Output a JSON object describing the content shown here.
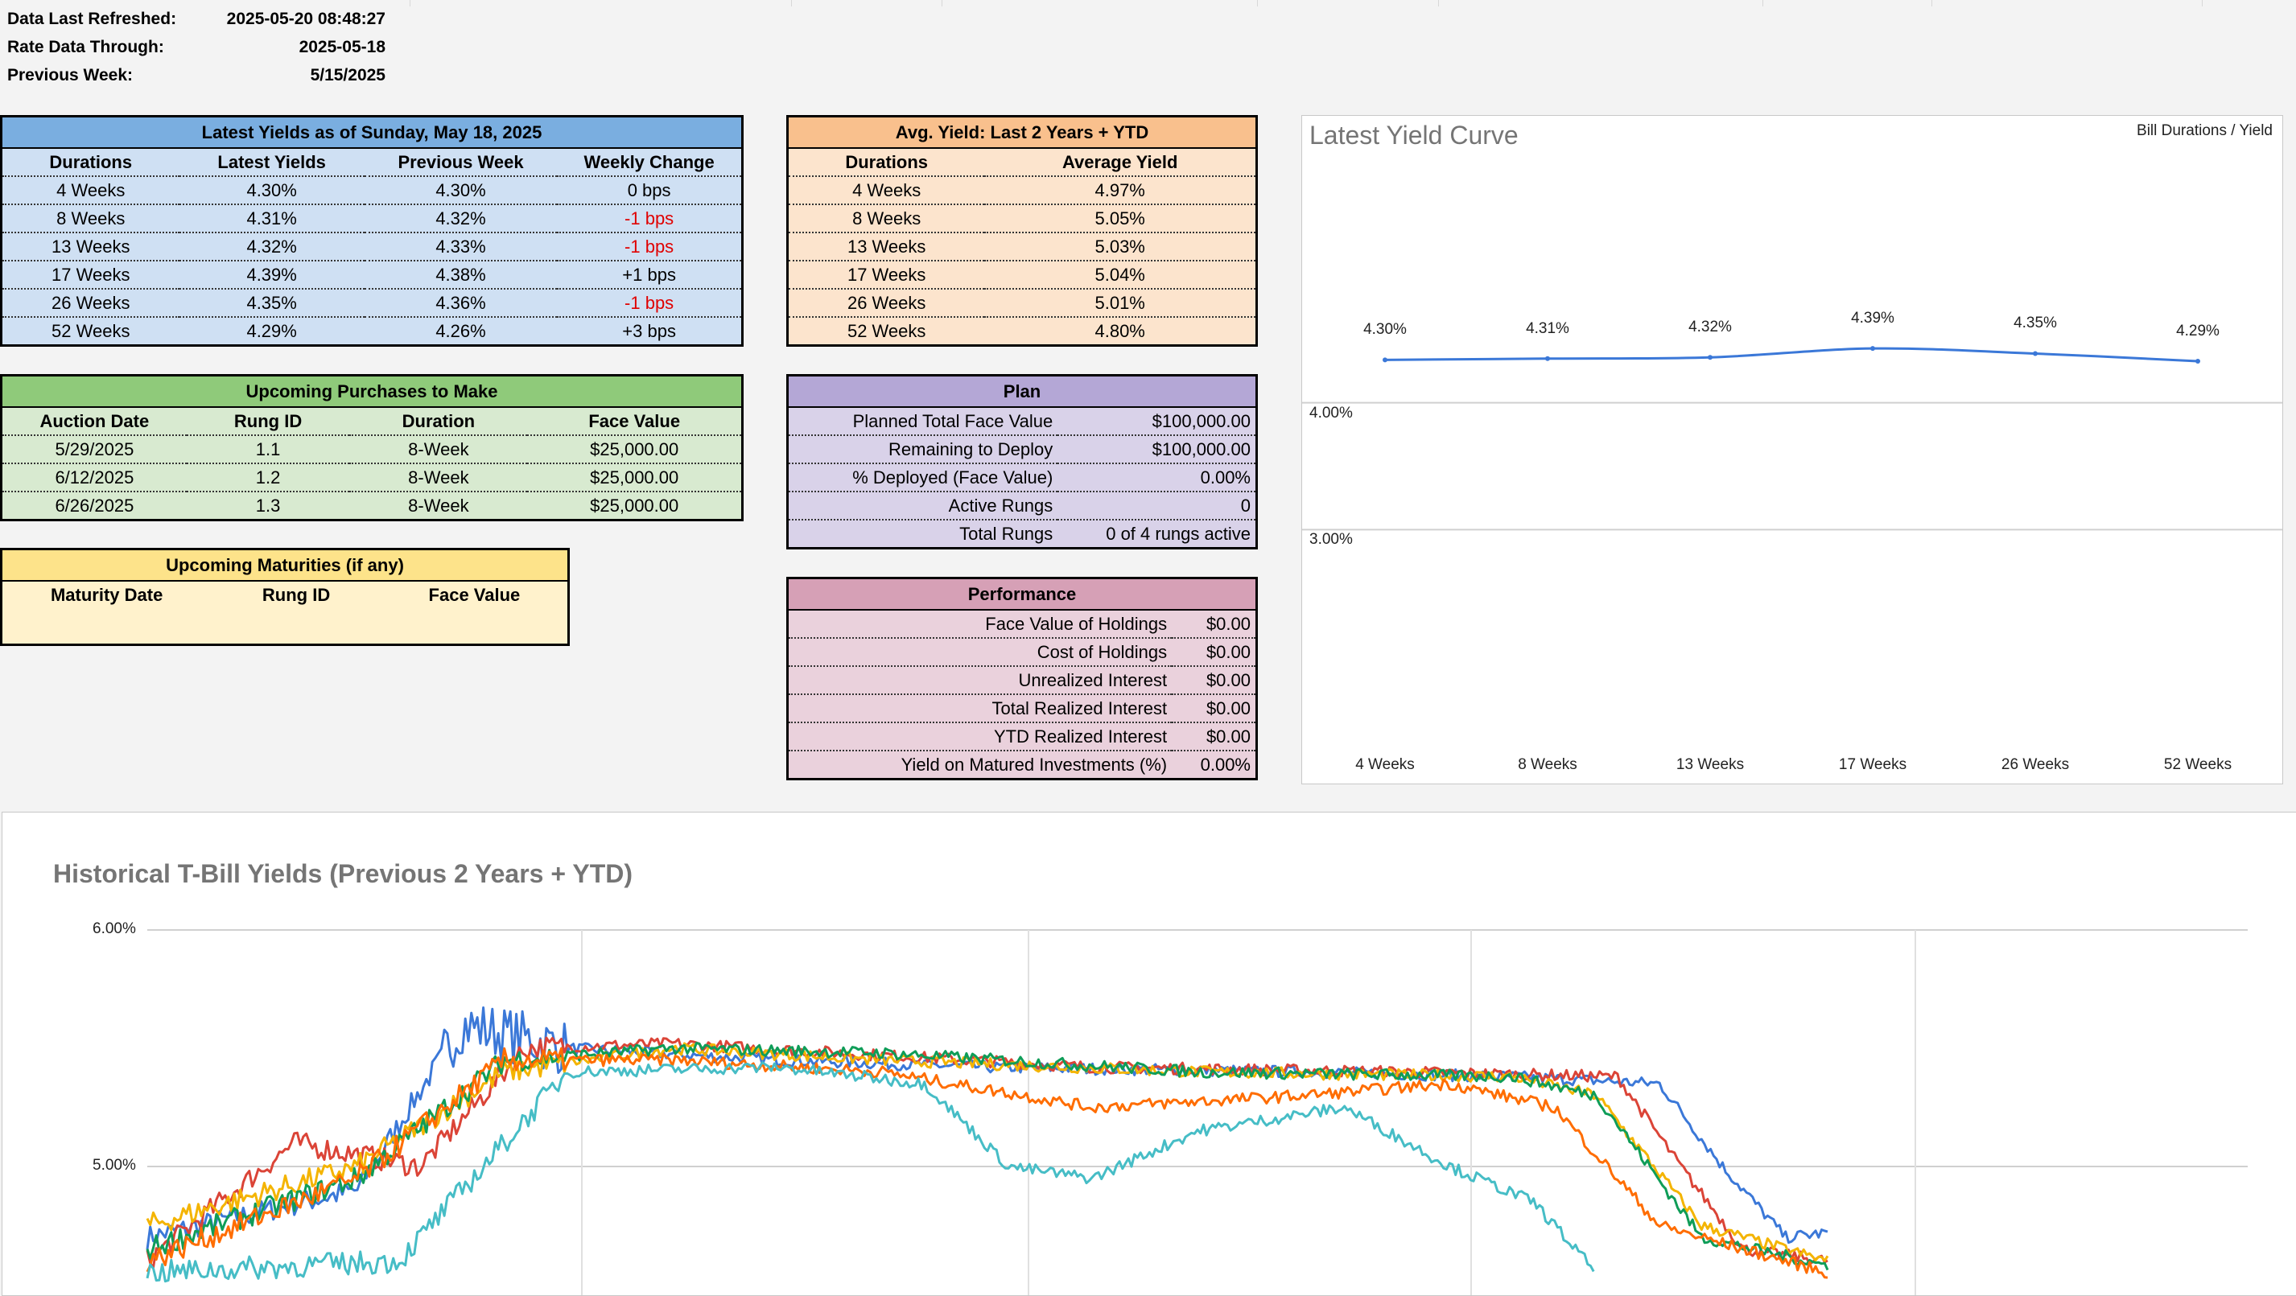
{
  "meta": {
    "refreshed_label": "Data Last Refreshed:",
    "refreshed_value": "2025-05-20 08:48:27",
    "through_label": "Rate Data Through:",
    "through_value": "2025-05-18",
    "prev_label": "Previous Week:",
    "prev_value": "5/15/2025"
  },
  "latest": {
    "title": "Latest Yields as of Sunday, May 18, 2025",
    "headers": [
      "Durations",
      "Latest Yields",
      "Previous Week",
      "Weekly Change"
    ],
    "rows": [
      [
        "4 Weeks",
        "4.30%",
        "4.30%",
        "0 bps"
      ],
      [
        "8 Weeks",
        "4.31%",
        "4.32%",
        "-1 bps"
      ],
      [
        "13 Weeks",
        "4.32%",
        "4.33%",
        "-1 bps"
      ],
      [
        "17 Weeks",
        "4.39%",
        "4.38%",
        "+1 bps"
      ],
      [
        "26 Weeks",
        "4.35%",
        "4.36%",
        "-1 bps"
      ],
      [
        "52 Weeks",
        "4.29%",
        "4.26%",
        "+3 bps"
      ]
    ],
    "negative_color": "#e00000"
  },
  "avg": {
    "title": "Avg. Yield: Last 2 Years + YTD",
    "headers": [
      "Durations",
      "Average Yield"
    ],
    "rows": [
      [
        "4 Weeks",
        "4.97%"
      ],
      [
        "8 Weeks",
        "5.05%"
      ],
      [
        "13 Weeks",
        "5.03%"
      ],
      [
        "17 Weeks",
        "5.04%"
      ],
      [
        "26 Weeks",
        "5.01%"
      ],
      [
        "52 Weeks",
        "4.80%"
      ]
    ]
  },
  "purchases": {
    "title": "Upcoming Purchases to Make",
    "headers": [
      "Auction Date",
      "Rung ID",
      "Duration",
      "Face Value"
    ],
    "rows": [
      [
        "5/29/2025",
        "1.1",
        "8-Week",
        "$25,000.00"
      ],
      [
        "6/12/2025",
        "1.2",
        "8-Week",
        "$25,000.00"
      ],
      [
        "6/26/2025",
        "1.3",
        "8-Week",
        "$25,000.00"
      ]
    ]
  },
  "maturities": {
    "title": "Upcoming Maturities (if any)",
    "headers": [
      "Maturity Date",
      "Rung ID",
      "Face Value"
    ]
  },
  "plan": {
    "title": "Plan",
    "rows": [
      [
        "Planned Total Face Value",
        "$100,000.00"
      ],
      [
        "Remaining to Deploy",
        "$100,000.00"
      ],
      [
        "% Deployed (Face Value)",
        "0.00%"
      ],
      [
        "Active Rungs",
        "0"
      ],
      [
        "Total Rungs",
        "0 of 4 rungs active"
      ]
    ]
  },
  "performance": {
    "title": "Performance",
    "rows": [
      [
        "Face Value of Holdings",
        "$0.00"
      ],
      [
        "Cost of Holdings",
        "$0.00"
      ],
      [
        "Unrealized Interest",
        "$0.00"
      ],
      [
        "Total Realized Interest",
        "$0.00"
      ],
      [
        "YTD Realized Interest",
        "$0.00"
      ],
      [
        "Yield on Matured Investments (%)",
        "0.00%"
      ]
    ]
  },
  "chart_data": [
    {
      "type": "line",
      "title": "Latest Yield Curve",
      "legend": "Bill Durations / Yield",
      "categories": [
        "4 Weeks",
        "8 Weeks",
        "13 Weeks",
        "17 Weeks",
        "26 Weeks",
        "52 Weeks"
      ],
      "values": [
        4.3,
        4.31,
        4.32,
        4.39,
        4.35,
        4.29
      ],
      "point_labels": [
        "4.30%",
        "4.31%",
        "4.32%",
        "4.39%",
        "4.35%",
        "4.29%"
      ],
      "ytick_labels": [
        "4.00%",
        "3.00%"
      ],
      "ylim": [
        2.0,
        5.0
      ],
      "color": "#3b78d8"
    },
    {
      "type": "line",
      "title": "Historical T-Bill Yields (Previous 2 Years + YTD)",
      "ytick_labels": [
        "6.00%",
        "5.00%"
      ],
      "ylim": [
        4.55,
        6.0
      ],
      "series_colors": [
        "#3b78d8",
        "#db4437",
        "#f4b400",
        "#0f9d58",
        "#ff6d01",
        "#46bdc6"
      ],
      "series_shape_keypoints": [
        [
          [
            0,
            4.7
          ],
          [
            0.1,
            4.9
          ],
          [
            0.15,
            5.6
          ],
          [
            0.2,
            5.5
          ],
          [
            0.3,
            5.45
          ],
          [
            0.4,
            5.42
          ],
          [
            0.55,
            5.4
          ],
          [
            0.65,
            5.38
          ],
          [
            0.72,
            5.35
          ],
          [
            0.75,
            5.0
          ],
          [
            0.78,
            4.7
          ],
          [
            0.8,
            4.72
          ]
        ],
        [
          [
            0,
            4.6
          ],
          [
            0.07,
            5.1
          ],
          [
            0.13,
            5.0
          ],
          [
            0.18,
            5.5
          ],
          [
            0.25,
            5.52
          ],
          [
            0.33,
            5.48
          ],
          [
            0.45,
            5.42
          ],
          [
            0.6,
            5.4
          ],
          [
            0.7,
            5.38
          ],
          [
            0.73,
            5.0
          ],
          [
            0.76,
            4.65
          ],
          [
            0.8,
            4.6
          ]
        ],
        [
          [
            0,
            4.75
          ],
          [
            0.1,
            5.0
          ],
          [
            0.17,
            5.4
          ],
          [
            0.25,
            5.5
          ],
          [
            0.35,
            5.45
          ],
          [
            0.5,
            5.4
          ],
          [
            0.65,
            5.38
          ],
          [
            0.69,
            5.3
          ],
          [
            0.74,
            4.75
          ],
          [
            0.8,
            4.6
          ]
        ],
        [
          [
            0,
            4.65
          ],
          [
            0.1,
            4.95
          ],
          [
            0.17,
            5.45
          ],
          [
            0.25,
            5.5
          ],
          [
            0.35,
            5.48
          ],
          [
            0.5,
            5.4
          ],
          [
            0.65,
            5.38
          ],
          [
            0.69,
            5.3
          ],
          [
            0.74,
            4.7
          ],
          [
            0.8,
            4.58
          ]
        ],
        [
          [
            0,
            4.6
          ],
          [
            0.1,
            4.95
          ],
          [
            0.17,
            5.45
          ],
          [
            0.25,
            5.45
          ],
          [
            0.35,
            5.4
          ],
          [
            0.45,
            5.25
          ],
          [
            0.55,
            5.3
          ],
          [
            0.62,
            5.35
          ],
          [
            0.67,
            5.25
          ],
          [
            0.72,
            4.75
          ],
          [
            0.8,
            4.55
          ]
        ],
        [
          [
            0,
            4.55
          ],
          [
            0.12,
            4.6
          ],
          [
            0.2,
            5.4
          ],
          [
            0.3,
            5.42
          ],
          [
            0.37,
            5.35
          ],
          [
            0.41,
            5.0
          ],
          [
            0.45,
            4.95
          ],
          [
            0.5,
            5.15
          ],
          [
            0.57,
            5.25
          ],
          [
            0.62,
            5.0
          ],
          [
            0.66,
            4.85
          ],
          [
            0.69,
            4.55
          ]
        ]
      ]
    }
  ]
}
